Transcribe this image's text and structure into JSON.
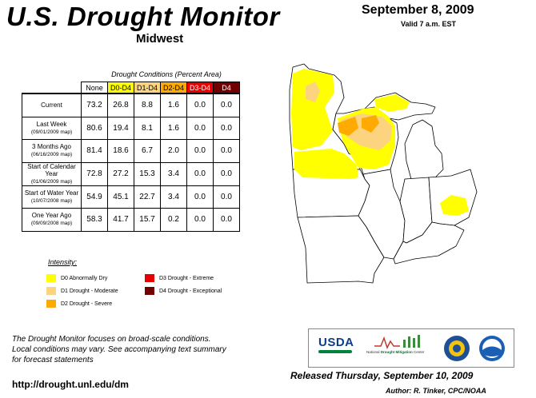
{
  "header": {
    "title": "U.S. Drought Monitor",
    "region": "Midwest",
    "date": "September 8, 2009",
    "valid": "Valid 7 a.m. EST"
  },
  "table": {
    "caption": "Drought Conditions (Percent Area)",
    "columns": [
      {
        "label": "None",
        "color": "#ffffff"
      },
      {
        "label": "D0-D4",
        "color": "#ffff00"
      },
      {
        "label": "D1-D4",
        "color": "#fcd37f"
      },
      {
        "label": "D2-D4",
        "color": "#ffaa00"
      },
      {
        "label": "D3-D4",
        "color": "#e60000"
      },
      {
        "label": "D4",
        "color": "#730000"
      }
    ],
    "rows": [
      {
        "label": "Current",
        "sublabel": "",
        "values": [
          "73.2",
          "26.8",
          "8.8",
          "1.6",
          "0.0",
          "0.0"
        ]
      },
      {
        "label": "Last Week",
        "sublabel": "(09/01/2009 map)",
        "values": [
          "80.6",
          "19.4",
          "8.1",
          "1.6",
          "0.0",
          "0.0"
        ]
      },
      {
        "label": "3 Months Ago",
        "sublabel": "(06/16/2009 map)",
        "values": [
          "81.4",
          "18.6",
          "6.7",
          "2.0",
          "0.0",
          "0.0"
        ]
      },
      {
        "label": "Start of Calendar Year",
        "sublabel": "(01/06/2009 map)",
        "values": [
          "72.8",
          "27.2",
          "15.3",
          "3.4",
          "0.0",
          "0.0"
        ]
      },
      {
        "label": "Start of Water Year",
        "sublabel": "(10/07/2008 map)",
        "values": [
          "54.9",
          "45.1",
          "22.7",
          "3.4",
          "0.0",
          "0.0"
        ]
      },
      {
        "label": "One Year Ago",
        "sublabel": "(09/09/2008 map)",
        "values": [
          "58.3",
          "41.7",
          "15.7",
          "0.2",
          "0.0",
          "0.0"
        ]
      }
    ]
  },
  "legend": {
    "title": "Intensity:",
    "items": [
      {
        "label": "D0 Abnormally Dry",
        "color": "#ffff00"
      },
      {
        "label": "D1 Drought - Moderate",
        "color": "#fcd37f"
      },
      {
        "label": "D2 Drought - Severe",
        "color": "#ffaa00"
      },
      {
        "label": "D3 Drought - Extreme",
        "color": "#e60000"
      },
      {
        "label": "D4 Drought - Exceptional",
        "color": "#730000"
      }
    ]
  },
  "footer": {
    "note_lines": [
      "The Drought Monitor focuses on broad-scale conditions.",
      "Local conditions may vary. See accompanying text summary",
      "for forecast statements"
    ],
    "url": "http://drought.unl.edu/dm",
    "released": "Released Thursday, September 10, 2009",
    "author": "Author: R. Tinker, CPC/NOAA"
  },
  "logos": {
    "usda": "USDA",
    "ndmc_prefix": "National ",
    "ndmc_highlight": "Drought Mitigation",
    "ndmc_suffix": " Center",
    "icons": [
      "usda-logo",
      "ndmc-logo",
      "doc-seal-icon",
      "noaa-logo-icon"
    ]
  }
}
